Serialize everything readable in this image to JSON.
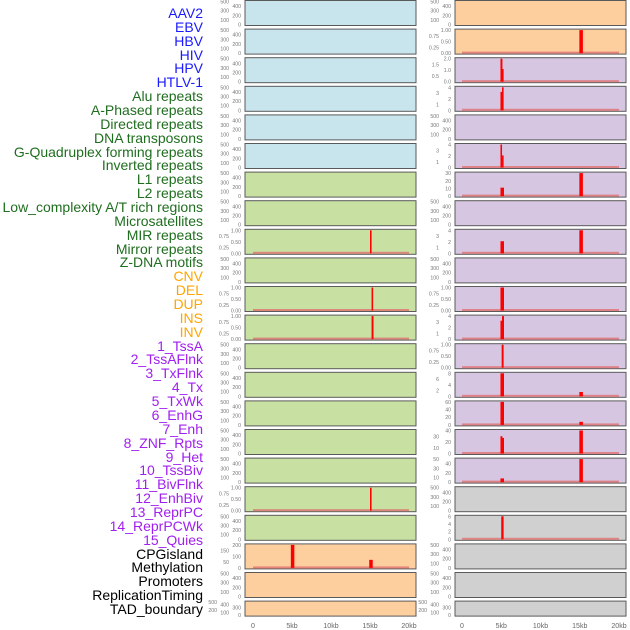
{
  "labels": [
    {
      "text": "AAV2",
      "color": "#1a1aff"
    },
    {
      "text": "EBV",
      "color": "#1a1aff"
    },
    {
      "text": "HBV",
      "color": "#1a1aff"
    },
    {
      "text": "HIV",
      "color": "#1a1aff"
    },
    {
      "text": "HPV",
      "color": "#1a1aff"
    },
    {
      "text": "HTLV-1",
      "color": "#1a1aff"
    },
    {
      "text": "Alu repeats",
      "color": "#1f6e1f"
    },
    {
      "text": "A-Phased repeats",
      "color": "#1f6e1f"
    },
    {
      "text": "Directed repeats",
      "color": "#1f6e1f"
    },
    {
      "text": "DNA transposons",
      "color": "#1f6e1f"
    },
    {
      "text": "G-Quadruplex forming repeats",
      "color": "#1f6e1f"
    },
    {
      "text": "Inverted repeats",
      "color": "#1f6e1f"
    },
    {
      "text": "L1 repeats",
      "color": "#1f6e1f"
    },
    {
      "text": "L2 repeats",
      "color": "#1f6e1f"
    },
    {
      "text": "Low_complexity A/T rich regions",
      "color": "#1f6e1f"
    },
    {
      "text": "Microsatellites",
      "color": "#1f6e1f"
    },
    {
      "text": "MIR repeats",
      "color": "#1f6e1f"
    },
    {
      "text": "Mirror repeats",
      "color": "#1f6e1f"
    },
    {
      "text": "Z-DNA motifs",
      "color": "#1f6e1f"
    },
    {
      "text": "CNV",
      "color": "#ffa500"
    },
    {
      "text": "DEL",
      "color": "#ffa500"
    },
    {
      "text": "DUP",
      "color": "#ffa500"
    },
    {
      "text": "INS",
      "color": "#ffa500"
    },
    {
      "text": "INV",
      "color": "#ffa500"
    },
    {
      "text": "1_TssA",
      "color": "#a020f0"
    },
    {
      "text": "2_TssAFlnk",
      "color": "#a020f0"
    },
    {
      "text": "3_TxFlnk",
      "color": "#a020f0"
    },
    {
      "text": "4_Tx",
      "color": "#a020f0"
    },
    {
      "text": "5_TxWk",
      "color": "#a020f0"
    },
    {
      "text": "6_EnhG",
      "color": "#a020f0"
    },
    {
      "text": "7_Enh",
      "color": "#a020f0"
    },
    {
      "text": "8_ZNF_Rpts",
      "color": "#a020f0"
    },
    {
      "text": "9_Het",
      "color": "#a020f0"
    },
    {
      "text": "10_TssBiv",
      "color": "#a020f0"
    },
    {
      "text": "11_BivFlnk",
      "color": "#a020f0"
    },
    {
      "text": "12_EnhBiv",
      "color": "#a020f0"
    },
    {
      "text": "13_ReprPC",
      "color": "#a020f0"
    },
    {
      "text": "14_ReprPCWk",
      "color": "#a020f0"
    },
    {
      "text": "15_Quies",
      "color": "#a020f0"
    },
    {
      "text": "CPGisland",
      "color": "#000000"
    },
    {
      "text": "Methylation",
      "color": "#000000"
    },
    {
      "text": "Promoters",
      "color": "#000000"
    },
    {
      "text": "ReplicationTiming",
      "color": "#000000"
    },
    {
      "text": "TAD_boundary",
      "color": "#000000"
    }
  ],
  "colors": {
    "blue": "#c8e4ec",
    "green": "#c8e0a2",
    "orange": "#fecf9e",
    "purple": "#d6c6e2",
    "gray": "#d0d0d0",
    "bar": "#ff0000",
    "baseline": "#e07070"
  },
  "chart_data": {
    "type": "bar",
    "xlim": [
      0,
      20000
    ],
    "x_tick_labels": [
      "0",
      "5kb",
      "10kb",
      "15kb",
      "20kb"
    ],
    "x_tick_values": [
      0,
      5000,
      10000,
      15000,
      20000
    ],
    "columns": [
      {
        "panels": [
          {
            "bg": "blue",
            "ticks": [
              "0",
              "100",
              "200",
              "300",
              "400",
              "500"
            ],
            "ymax": 500,
            "bars": []
          },
          {
            "bg": "blue",
            "ticks": [
              "0",
              "100",
              "200",
              "300",
              "400",
              "500"
            ],
            "ymax": 500,
            "bars": []
          },
          {
            "bg": "blue",
            "ticks": [
              "0",
              "100",
              "200",
              "300",
              "400",
              "500"
            ],
            "ymax": 500,
            "bars": []
          },
          {
            "bg": "blue",
            "ticks": [
              "0",
              "100",
              "200",
              "300",
              "400",
              "500"
            ],
            "ymax": 500,
            "bars": []
          },
          {
            "bg": "blue",
            "ticks": [
              "0",
              "100",
              "200",
              "300",
              "400",
              "500"
            ],
            "ymax": 500,
            "bars": []
          },
          {
            "bg": "blue",
            "ticks": [
              "0",
              "100",
              "200",
              "300",
              "400",
              "500"
            ],
            "ymax": 500,
            "bars": []
          },
          {
            "bg": "green",
            "ticks": [
              "0",
              "100",
              "200",
              "300",
              "400",
              "500"
            ],
            "ymax": 500,
            "bars": []
          },
          {
            "bg": "green",
            "ticks": [
              "0",
              "100",
              "200",
              "300",
              "400",
              "500"
            ],
            "ymax": 500,
            "bars": []
          },
          {
            "bg": "green",
            "ticks": [
              "0.00",
              "0.25",
              "0.50",
              "0.75",
              "1.00"
            ],
            "ymax": 1,
            "bars": [
              {
                "x": 15000,
                "w": 200,
                "v": 1
              }
            ]
          },
          {
            "bg": "green",
            "ticks": [
              "0",
              "100",
              "200",
              "300",
              "400",
              "500"
            ],
            "ymax": 500,
            "bars": []
          },
          {
            "bg": "green",
            "ticks": [
              "0.00",
              "0.25",
              "0.50",
              "0.75",
              "1.00"
            ],
            "ymax": 1,
            "bars": [
              {
                "x": 15200,
                "w": 200,
                "v": 1
              }
            ]
          },
          {
            "bg": "green",
            "ticks": [
              "0.00",
              "0.25",
              "0.50",
              "0.75",
              "1.00"
            ],
            "ymax": 1,
            "bars": [
              {
                "x": 15200,
                "w": 250,
                "v": 1
              }
            ]
          },
          {
            "bg": "green",
            "ticks": [
              "0",
              "100",
              "200",
              "300",
              "400",
              "500"
            ],
            "ymax": 500,
            "bars": []
          },
          {
            "bg": "green",
            "ticks": [
              "0",
              "100",
              "200",
              "300",
              "400",
              "500"
            ],
            "ymax": 500,
            "bars": []
          },
          {
            "bg": "green",
            "ticks": [
              "0",
              "100",
              "200",
              "300",
              "400",
              "500"
            ],
            "ymax": 500,
            "bars": []
          },
          {
            "bg": "green",
            "ticks": [
              "0",
              "100",
              "200",
              "300",
              "400",
              "500"
            ],
            "ymax": 500,
            "bars": []
          },
          {
            "bg": "green",
            "ticks": [
              "0",
              "100",
              "200",
              "300",
              "400",
              "500"
            ],
            "ymax": 500,
            "bars": []
          },
          {
            "bg": "green",
            "ticks": [
              "0.00",
              "0.25",
              "0.50",
              "0.75",
              "1.00"
            ],
            "ymax": 1,
            "bars": [
              {
                "x": 15000,
                "w": 200,
                "v": 1
              }
            ]
          },
          {
            "bg": "green",
            "ticks": [
              "0",
              "100",
              "200",
              "300",
              "400",
              "500"
            ],
            "ymax": 500,
            "bars": []
          },
          {
            "bg": "orange",
            "ticks": [
              "0",
              "50",
              "100",
              "150",
              "200"
            ],
            "ymax": 200,
            "bars": [
              {
                "x": 4850,
                "w": 450,
                "v": 200
              },
              {
                "x": 14900,
                "w": 450,
                "v": 70
              }
            ]
          },
          {
            "bg": "orange",
            "ticks": [
              "0",
              "100",
              "200",
              "300",
              "400",
              "500"
            ],
            "ymax": 500,
            "bars": []
          },
          {
            "bg": "orange",
            "ticks": [
              "0",
              "100",
              "200",
              "300",
              "400",
              "500"
            ],
            "ymax": 500,
            "bars": []
          }
        ]
      },
      {
        "panels": [
          {
            "bg": "orange",
            "ticks": [
              "0",
              "100",
              "200",
              "300",
              "400",
              "500"
            ],
            "ymax": 500,
            "bars": []
          },
          {
            "bg": "orange",
            "ticks": [
              "0.00",
              "0.25",
              "0.50",
              "0.75",
              "1.00"
            ],
            "ymax": 1,
            "bars": [
              {
                "x": 14950,
                "w": 450,
                "v": 1
              }
            ]
          },
          {
            "bg": "purple",
            "ticks": [
              "0.0",
              "0.5",
              "1.0",
              "1.5",
              "2.0"
            ],
            "ymax": 2,
            "bars": [
              {
                "x": 4900,
                "w": 250,
                "v": 2
              },
              {
                "x": 5100,
                "w": 200,
                "v": 1.1
              }
            ]
          },
          {
            "bg": "purple",
            "ticks": [
              "0",
              "1",
              "2",
              "3",
              "4"
            ],
            "ymax": 4,
            "bars": [
              {
                "x": 4900,
                "w": 250,
                "v": 3.2
              },
              {
                "x": 5100,
                "w": 200,
                "v": 4
              }
            ]
          },
          {
            "bg": "purple",
            "ticks": [
              "0",
              "100",
              "200",
              "300",
              "400",
              "500"
            ],
            "ymax": 500,
            "bars": []
          },
          {
            "bg": "purple",
            "ticks": [
              "0",
              "1",
              "2",
              "3",
              "4"
            ],
            "ymax": 4,
            "bars": [
              {
                "x": 4900,
                "w": 200,
                "v": 4
              },
              {
                "x": 5100,
                "w": 200,
                "v": 2.1
              }
            ]
          },
          {
            "bg": "purple",
            "ticks": [
              "0",
              "10",
              "20",
              "30"
            ],
            "ymax": 30,
            "bars": [
              {
                "x": 4900,
                "w": 450,
                "v": 11
              },
              {
                "x": 14950,
                "w": 450,
                "v": 30
              }
            ]
          },
          {
            "bg": "purple",
            "ticks": [
              "0",
              "100",
              "200",
              "300",
              "400",
              "500"
            ],
            "ymax": 500,
            "bars": []
          },
          {
            "bg": "purple",
            "ticks": [
              "0",
              "1",
              "2",
              "3",
              "4"
            ],
            "ymax": 4,
            "bars": [
              {
                "x": 4900,
                "w": 450,
                "v": 2.1
              },
              {
                "x": 14950,
                "w": 450,
                "v": 4
              }
            ]
          },
          {
            "bg": "purple",
            "ticks": [
              "0",
              "100",
              "200",
              "300",
              "400",
              "500"
            ],
            "ymax": 500,
            "bars": []
          },
          {
            "bg": "purple",
            "ticks": [
              "0.00",
              "0.25",
              "0.50",
              "0.75",
              "1.00"
            ],
            "ymax": 1,
            "bars": [
              {
                "x": 4900,
                "w": 450,
                "v": 1
              }
            ]
          },
          {
            "bg": "purple",
            "ticks": [
              "0",
              "1",
              "2",
              "3",
              "4"
            ],
            "ymax": 4,
            "bars": [
              {
                "x": 4900,
                "w": 250,
                "v": 3.2
              },
              {
                "x": 5100,
                "w": 250,
                "v": 4
              }
            ]
          },
          {
            "bg": "purple",
            "ticks": [
              "0.00",
              "0.25",
              "0.50",
              "0.75",
              "1.00"
            ],
            "ymax": 1,
            "bars": [
              {
                "x": 5050,
                "w": 250,
                "v": 1
              }
            ]
          },
          {
            "bg": "purple",
            "ticks": [
              "0",
              "2",
              "4",
              "6",
              "8"
            ],
            "ymax": 8,
            "bars": [
              {
                "x": 4900,
                "w": 450,
                "v": 8
              },
              {
                "x": 14950,
                "w": 450,
                "v": 1.5
              }
            ]
          },
          {
            "bg": "purple",
            "ticks": [
              "0",
              "20",
              "40",
              "60"
            ],
            "ymax": 60,
            "bars": [
              {
                "x": 4900,
                "w": 450,
                "v": 65
              },
              {
                "x": 14950,
                "w": 450,
                "v": 8
              }
            ]
          },
          {
            "bg": "purple",
            "ticks": [
              "0",
              "10",
              "20",
              "30",
              "40"
            ],
            "ymax": 40,
            "bars": [
              {
                "x": 4900,
                "w": 250,
                "v": 30
              },
              {
                "x": 5100,
                "w": 250,
                "v": 27
              },
              {
                "x": 14950,
                "w": 450,
                "v": 40
              }
            ]
          },
          {
            "bg": "purple",
            "ticks": [
              "0",
              "10",
              "20",
              "30",
              "40",
              "50"
            ],
            "ymax": 50,
            "bars": [
              {
                "x": 4900,
                "w": 450,
                "v": 8
              },
              {
                "x": 14950,
                "w": 450,
                "v": 50
              }
            ]
          },
          {
            "bg": "gray",
            "ticks": [
              "0",
              "100",
              "200",
              "300",
              "400",
              "500"
            ],
            "ymax": 500,
            "bars": []
          },
          {
            "bg": "gray",
            "ticks": [
              "0",
              "2",
              "4",
              "6"
            ],
            "ymax": 6,
            "bars": [
              {
                "x": 5000,
                "w": 300,
                "v": 6
              }
            ]
          },
          {
            "bg": "gray",
            "ticks": [
              "0",
              "100",
              "200",
              "300",
              "400",
              "500"
            ],
            "ymax": 500,
            "bars": []
          },
          {
            "bg": "gray",
            "ticks": [
              "0",
              "100",
              "200",
              "300",
              "400",
              "500"
            ],
            "ymax": 500,
            "bars": []
          },
          {
            "bg": "gray",
            "ticks": [
              "0",
              "100",
              "200",
              "300",
              "400",
              "500"
            ],
            "ymax": 500,
            "bars": []
          }
        ]
      }
    ]
  }
}
